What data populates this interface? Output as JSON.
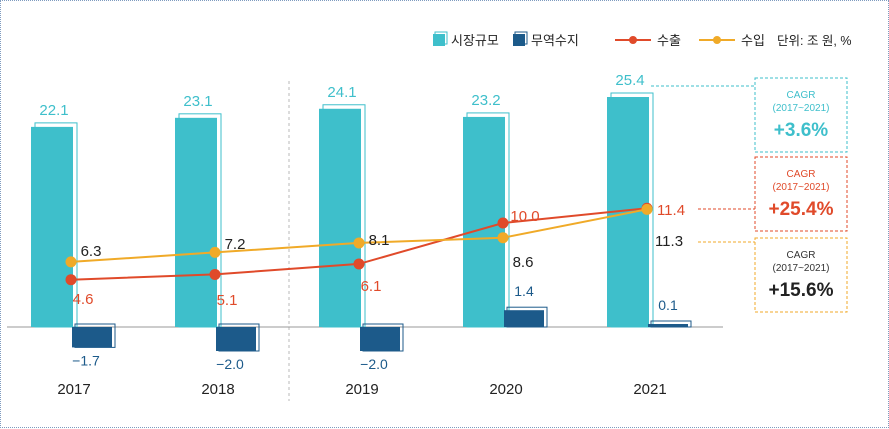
{
  "chart_data": {
    "type": "bar",
    "categories": [
      "2017",
      "2018",
      "2019",
      "2020",
      "2021"
    ],
    "unit_label": "단위: 조 원, %",
    "series": [
      {
        "name": "시장규모",
        "kind": "bar",
        "color": "#3ebfcb",
        "values": [
          22.1,
          23.1,
          24.1,
          23.2,
          25.4
        ],
        "labels": [
          "22.1",
          "23.1",
          "24.1",
          "23.2",
          "25.4"
        ]
      },
      {
        "name": "무역수지",
        "kind": "bar",
        "color": "#1c5a8a",
        "values": [
          -1.7,
          -2.0,
          -2.0,
          1.4,
          0.1
        ],
        "labels": [
          "−1.7",
          "−2.0",
          "−2.0",
          "1.4",
          "0.1"
        ]
      },
      {
        "name": "수출",
        "kind": "line",
        "color": "#e04a2a",
        "label_color": "#e04a2a",
        "values": [
          4.6,
          5.1,
          6.1,
          10.0,
          11.4
        ],
        "labels": [
          "4.6",
          "5.1",
          "6.1",
          "10.0",
          "11.4"
        ]
      },
      {
        "name": "수입",
        "kind": "line",
        "color": "#f0aa28",
        "label_color": "#222222",
        "values": [
          6.3,
          7.2,
          8.1,
          8.6,
          11.3
        ],
        "labels": [
          "6.3",
          "7.2",
          "8.1",
          "8.6",
          "11.3"
        ]
      }
    ],
    "cagr_boxes": [
      {
        "series": "시장규모",
        "title": "CAGR",
        "period": "(2017~2021)",
        "value": "+3.6%",
        "color": "#3ebfcb",
        "value_color": "#3ebfcb",
        "title_color": "#3ebfcb"
      },
      {
        "series": "수출",
        "title": "CAGR",
        "period": "(2017~2021)",
        "value": "+25.4%",
        "color": "#e04a2a",
        "value_color": "#e04a2a",
        "title_color": "#e04a2a"
      },
      {
        "series": "수입",
        "title": "CAGR",
        "period": "(2017~2021)",
        "value": "+15.6%",
        "color": "#f0aa28",
        "value_color": "#222222",
        "title_color": "#333333"
      }
    ]
  }
}
